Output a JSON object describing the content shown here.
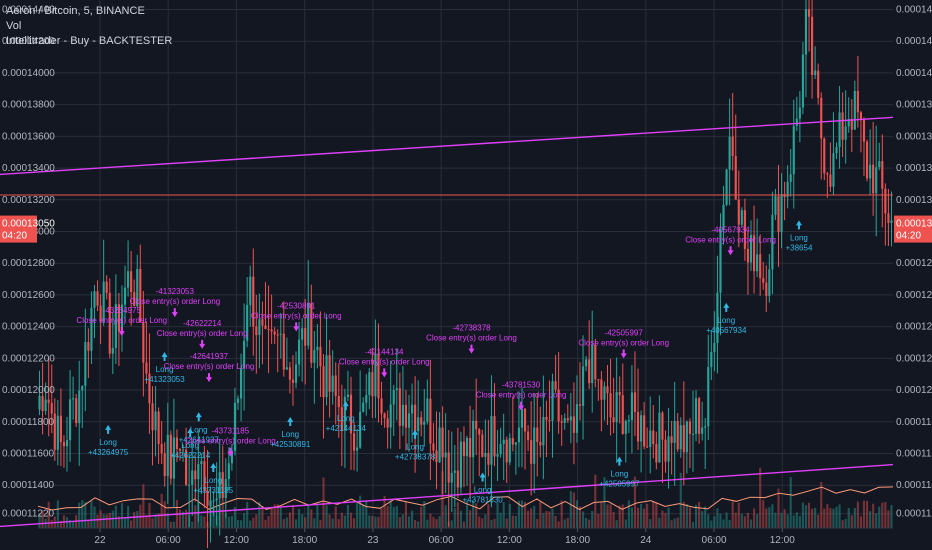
{
  "legend": {
    "title": "Aeron / Bitcoin, 5, BINANCE",
    "line2": "Vol",
    "line3": "Intellitrader - Buy - BACKTESTER"
  },
  "chart_data": {
    "type": "candlestick",
    "symbol": "Aeron / Bitcoin",
    "interval": "5",
    "exchange": "BINANCE",
    "indicators": [
      "Vol",
      "Intellitrader - Buy - BACKTESTER"
    ],
    "y_ticks": [
      "0.00011220",
      "0.00011400",
      "0.00011600",
      "0.00011800",
      "0.00012000",
      "0.00012200",
      "0.00012400",
      "0.00012600",
      "0.00012800",
      "0.00013000",
      "0.00013200",
      "0.00013400",
      "0.00013600",
      "0.00013800",
      "0.00014000",
      "0.00014200",
      "0.00014400"
    ],
    "y_tick_values": [
      0.0001122,
      0.000114,
      0.000116,
      0.000118,
      0.00012,
      0.000122,
      0.000124,
      0.000126,
      0.000128,
      0.00013,
      0.000132,
      0.000134,
      0.000136,
      0.000138,
      0.00014,
      0.000142,
      0.000144
    ],
    "ylim": [
      0.0001113,
      0.0001446
    ],
    "x_ticks": [
      "22",
      "06:00",
      "12:00",
      "18:00",
      "23",
      "06:00",
      "12:00",
      "18:00",
      "24",
      "06:00",
      "12:00"
    ],
    "last_price": {
      "label": "0.00013050",
      "value": 0.0001305,
      "countdown": "04:20",
      "color": "#ef5350"
    },
    "horizontal_line": {
      "value": 0.0001323,
      "color": "#ef5350"
    },
    "trendlines": [
      {
        "from": 0.0001336,
        "to": 0.0001372,
        "color": "#e040fb"
      },
      {
        "from": 0.0001114,
        "to": 0.0001153,
        "color": "#e040fb"
      }
    ],
    "price_path": [
      0.0001188,
      0.0001205,
      0.000118,
      0.0001162,
      0.0001185,
      0.0001198,
      0.0001232,
      0.0001268,
      0.0001252,
      0.0001228,
      0.0001255,
      0.0001272,
      0.0001258,
      0.0001208,
      0.0001178,
      0.0001162,
      0.0001152,
      0.0001172,
      0.000113,
      0.0001165,
      0.0001148,
      0.0001122,
      0.0001138,
      0.000116,
      0.0001205,
      0.000127,
      0.0001242,
      0.0001222,
      0.0001225,
      0.0001235,
      0.000121,
      0.0001225,
      0.000124,
      0.0001228,
      0.0001208,
      0.0001196,
      0.0001188,
      0.0001182,
      0.0001175,
      0.0001192,
      0.0001212,
      0.0001198,
      0.0001188,
      0.000119,
      0.0001193,
      0.0001188,
      0.0001187,
      0.0001172,
      0.0001172,
      0.0001148,
      0.0001158,
      0.0001162,
      0.0001168,
      0.0001165,
      0.0001172,
      0.0001178,
      0.0001165,
      0.0001175,
      0.0001172,
      0.000116,
      0.000117,
      0.000119,
      0.000118,
      0.0001168,
      0.0001175,
      0.0001225,
      0.0001205,
      0.0001195,
      0.000118,
      0.000119,
      0.0001182,
      0.000118,
      0.0001175,
      0.0001172,
      0.0001168,
      0.0001178,
      0.000117,
      0.0001165,
      0.0001185,
      0.000118,
      0.0001238,
      0.0001318,
      0.0001365,
      0.0001318,
      0.0001278,
      0.0001292,
      0.0001268,
      0.0001305,
      0.0001322,
      0.0001342,
      0.0001378,
      0.0001432,
      0.0001385,
      0.0001352,
      0.0001338,
      0.0001362,
      0.0001378,
      0.0001372,
      0.0001342,
      0.0001336,
      0.0001322,
      0.0001305
    ],
    "signals": [
      {
        "type": "Long",
        "label": "Long",
        "value": "+43264975",
        "position": 0.082,
        "level": 0.0001178
      },
      {
        "type": "Close",
        "label": "Close entry(s) order Long",
        "value": "-43264975",
        "position": 0.098,
        "level": 0.0001234
      },
      {
        "type": "Long",
        "label": "Long",
        "value": "+41323053",
        "position": 0.148,
        "level": 0.0001224
      },
      {
        "type": "Close",
        "label": "Close entry(s) order Long",
        "value": "-41323053",
        "position": 0.16,
        "level": 0.0001246
      },
      {
        "type": "Long",
        "label": "Long",
        "value": "+42622214",
        "position": 0.178,
        "level": 0.0001176
      },
      {
        "type": "Close",
        "label": "Close entry(s) order Long",
        "value": "-42622214",
        "position": 0.192,
        "level": 0.0001226
      },
      {
        "type": "Long",
        "label": "Long",
        "value": "+42641937",
        "position": 0.188,
        "level": 0.0001186
      },
      {
        "type": "Close",
        "label": "Close entry(s) order Long",
        "value": "-42641937",
        "position": 0.2,
        "level": 0.0001205
      },
      {
        "type": "Long",
        "label": "Long",
        "value": "+43731185",
        "position": 0.205,
        "level": 0.0001154
      },
      {
        "type": "Close",
        "label": "Close entry(s) order Long",
        "value": "-43731185",
        "position": 0.225,
        "level": 0.0001158
      },
      {
        "type": "Long",
        "label": "Long",
        "value": "+42530891",
        "position": 0.295,
        "level": 0.0001183
      },
      {
        "type": "Close",
        "label": "Close entry(s) order Long",
        "value": "-42530891",
        "position": 0.302,
        "level": 0.0001237
      },
      {
        "type": "Long",
        "label": "Long",
        "value": "+42144134",
        "position": 0.36,
        "level": 0.0001193
      },
      {
        "type": "Close",
        "label": "Close entry(s) order Long",
        "value": "-42144134",
        "position": 0.405,
        "level": 0.0001208
      },
      {
        "type": "Long",
        "label": "Long",
        "value": "+42738378",
        "position": 0.441,
        "level": 0.0001175
      },
      {
        "type": "Close",
        "label": "Close entry(s) order Long",
        "value": "-42738378",
        "position": 0.507,
        "level": 0.0001223
      },
      {
        "type": "Long",
        "label": "Long",
        "value": "+43781530",
        "position": 0.52,
        "level": 0.0001148
      },
      {
        "type": "Close",
        "label": "Close entry(s) order Long",
        "value": "-43781530",
        "position": 0.565,
        "level": 0.0001187
      },
      {
        "type": "Long",
        "label": "Long",
        "value": "+42505997",
        "position": 0.68,
        "level": 0.0001158
      },
      {
        "type": "Close",
        "label": "Close entry(s) order Long",
        "value": "-42505997",
        "position": 0.685,
        "level": 0.000122
      },
      {
        "type": "Long",
        "label": "Long",
        "value": "+40567934",
        "position": 0.805,
        "level": 0.0001255
      },
      {
        "type": "Close",
        "label": "Close entry(s) order Long",
        "value": "-40567934",
        "position": 0.81,
        "level": 0.0001285
      },
      {
        "type": "Long",
        "label": "Long",
        "value": "+38654",
        "position": 0.89,
        "level": 0.0001307
      }
    ],
    "colors": {
      "background": "#131722",
      "up": "#26a69a",
      "down": "#ef5350",
      "volume_ma": "#ff9b7a",
      "long_signal": "#2fb8e6",
      "close_signal": "#e040fb",
      "grid": "#2a2e39",
      "axis_text": "#b2b5be"
    }
  }
}
